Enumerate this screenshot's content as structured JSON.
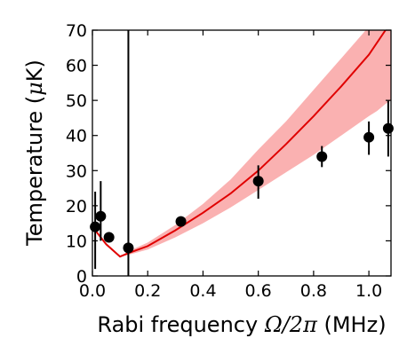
{
  "chart_data": {
    "type": "scatter",
    "xlabel": {
      "prefix": "Rabi frequency ",
      "math": "Ω/2π",
      "suffix": " (MHz)"
    },
    "ylabel": {
      "prefix": "Temperature (",
      "math": "μ",
      "suffix": "K)"
    },
    "xlim": [
      0,
      1.08
    ],
    "ylim": [
      0,
      70
    ],
    "x_ticks": [
      {
        "value": 0.0,
        "label": "0.0"
      },
      {
        "value": 0.2,
        "label": "0.2"
      },
      {
        "value": 0.4,
        "label": "0.4"
      },
      {
        "value": 0.6,
        "label": "0.6"
      },
      {
        "value": 0.8,
        "label": "0.8"
      },
      {
        "value": 1.0,
        "label": "1.0"
      }
    ],
    "y_ticks": [
      {
        "value": 0,
        "label": "0"
      },
      {
        "value": 10,
        "label": "10"
      },
      {
        "value": 20,
        "label": "20"
      },
      {
        "value": 30,
        "label": "30"
      },
      {
        "value": 40,
        "label": "40"
      },
      {
        "value": 50,
        "label": "50"
      },
      {
        "value": 60,
        "label": "60"
      },
      {
        "value": 70,
        "label": "70"
      }
    ],
    "grid": false,
    "measurements": {
      "color": "#000000",
      "points": [
        {
          "x": 0.01,
          "y": 14,
          "yerr_low": 12,
          "yerr_high": 10
        },
        {
          "x": 0.03,
          "y": 17,
          "yerr_low": 7,
          "yerr_high": 10
        },
        {
          "x": 0.06,
          "y": 11,
          "yerr_low": 1.5,
          "yerr_high": 1.5
        },
        {
          "x": 0.13,
          "y": 8,
          "yerr_low": 8,
          "yerr_high": 62
        },
        {
          "x": 0.32,
          "y": 15.5,
          "yerr_low": 1,
          "yerr_high": 1
        },
        {
          "x": 0.6,
          "y": 27,
          "yerr_low": 5,
          "yerr_high": 4.5
        },
        {
          "x": 0.83,
          "y": 34,
          "yerr_low": 3,
          "yerr_high": 3
        },
        {
          "x": 1.0,
          "y": 39.5,
          "yerr_low": 5,
          "yerr_high": 4.5
        },
        {
          "x": 1.07,
          "y": 42,
          "yerr_low": 8,
          "yerr_high": 8
        }
      ]
    },
    "theory": {
      "color": "#e00000",
      "band_color": "#f9a3a3",
      "line": {
        "x": [
          0.0,
          0.05,
          0.1,
          0.13,
          0.2,
          0.3,
          0.4,
          0.5,
          0.6,
          0.7,
          0.8,
          0.9,
          1.0,
          1.06
        ],
        "y": [
          14,
          9,
          5.5,
          6.5,
          8.5,
          13,
          18,
          23.5,
          30,
          37.5,
          45.5,
          54,
          63,
          70
        ]
      },
      "band": {
        "x": [
          0.0,
          0.05,
          0.1,
          0.13,
          0.2,
          0.3,
          0.4,
          0.5,
          0.6,
          0.7,
          0.8,
          0.9,
          1.0,
          1.03,
          1.06,
          1.08
        ],
        "lower": [
          14,
          9,
          5.5,
          6,
          7.5,
          11,
          15,
          19.5,
          24.5,
          29.5,
          34.5,
          40,
          45.5,
          47,
          49,
          50
        ],
        "upper": [
          14,
          9,
          5.5,
          7,
          9.5,
          14.5,
          20.5,
          27.5,
          36,
          44,
          53,
          62,
          71,
          71,
          71,
          71
        ]
      }
    }
  }
}
